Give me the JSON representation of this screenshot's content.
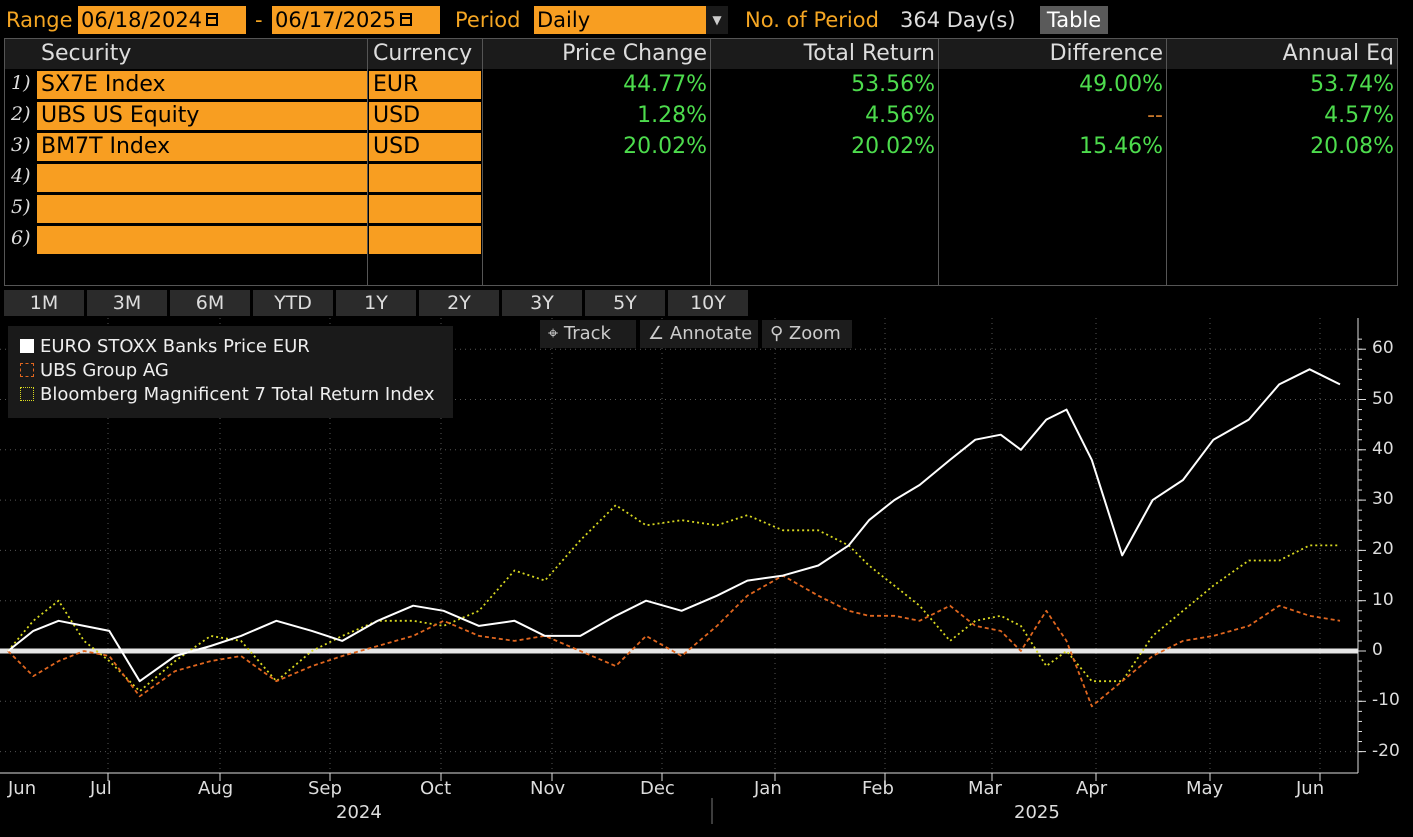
{
  "toolbar": {
    "range_label": "Range",
    "start_date": "06/18/2024",
    "dash": "-",
    "end_date": "06/17/2025",
    "period_label": "Period",
    "period_value": "Daily",
    "num_period_label": "No. of Period",
    "num_period_value": "364 Day(s)",
    "table_button": "Table"
  },
  "table": {
    "headers": [
      "Security",
      "Currency",
      "Price Change",
      "Total Return",
      "Difference",
      "Annual Eq"
    ],
    "rows": [
      {
        "n": "1)",
        "security": "SX7E Index",
        "currency": "EUR",
        "price_change": "44.77%",
        "total_return": "53.56%",
        "difference": "49.00%",
        "annual_eq": "53.74%"
      },
      {
        "n": "2)",
        "security": "UBS US Equity",
        "currency": "USD",
        "price_change": "1.28%",
        "total_return": "4.56%",
        "difference": "--",
        "annual_eq": "4.57%"
      },
      {
        "n": "3)",
        "security": "BM7T Index",
        "currency": "USD",
        "price_change": "20.02%",
        "total_return": "20.02%",
        "difference": "15.46%",
        "annual_eq": "20.08%"
      },
      {
        "n": "4)",
        "security": "",
        "currency": "",
        "price_change": "",
        "total_return": "",
        "difference": "",
        "annual_eq": ""
      },
      {
        "n": "5)",
        "security": "",
        "currency": "",
        "price_change": "",
        "total_return": "",
        "difference": "",
        "annual_eq": ""
      },
      {
        "n": "6)",
        "security": "",
        "currency": "",
        "price_change": "",
        "total_return": "",
        "difference": "",
        "annual_eq": ""
      }
    ]
  },
  "periods": [
    "1M",
    "3M",
    "6M",
    "YTD",
    "1Y",
    "2Y",
    "3Y",
    "5Y",
    "10Y"
  ],
  "chart_tools": {
    "track": "Track",
    "annotate": "Annotate",
    "zoom": "Zoom"
  },
  "colors": {
    "accent": "#f89e21",
    "positive": "#4ddc4d",
    "background": "#000000"
  },
  "chart_data": {
    "type": "line",
    "x_unit": "trading day index from 2024-06-18",
    "legend_position": "top-left",
    "grid": true,
    "ylim": [
      -22,
      65
    ],
    "yticks": [
      60,
      50,
      40,
      30,
      20,
      10,
      0,
      -10,
      -20
    ],
    "xlabels": [
      "Jun",
      "Jul",
      "Aug",
      "Sep",
      "Oct",
      "Nov",
      "Dec",
      "Jan",
      "Feb",
      "Mar",
      "Apr",
      "May",
      "Jun"
    ],
    "years": [
      "2024",
      "2025"
    ],
    "series": [
      {
        "name": "EURO STOXX Banks Price EUR",
        "color": "#ffffff",
        "dash": "none",
        "x": [
          0,
          5,
          10,
          15,
          20,
          26,
          33,
          40,
          46,
          53,
          60,
          66,
          73,
          80,
          86,
          93,
          100,
          106,
          113,
          120,
          126,
          133,
          140,
          146,
          153,
          160,
          166,
          170,
          175,
          180,
          186,
          191,
          196,
          200,
          205,
          209,
          214,
          220,
          226,
          232,
          238,
          245,
          251,
          257,
          263
        ],
        "y": [
          0,
          4,
          6,
          5,
          4,
          -6,
          -1,
          1,
          3,
          6,
          4,
          2,
          6,
          9,
          8,
          5,
          6,
          3,
          3,
          7,
          10,
          8,
          11,
          14,
          15,
          17,
          21,
          26,
          30,
          33,
          38,
          42,
          43,
          40,
          46,
          48,
          38,
          19,
          30,
          34,
          42,
          46,
          53,
          56,
          53
        ]
      },
      {
        "name": "UBS Group AG",
        "color": "#e0661f",
        "dash": "4,3",
        "x": [
          0,
          5,
          10,
          15,
          20,
          26,
          33,
          40,
          46,
          53,
          60,
          66,
          73,
          80,
          86,
          93,
          100,
          106,
          113,
          120,
          126,
          133,
          140,
          146,
          153,
          160,
          166,
          170,
          175,
          180,
          186,
          191,
          196,
          200,
          205,
          209,
          214,
          220,
          226,
          232,
          238,
          245,
          251,
          257,
          263
        ],
        "y": [
          0,
          -5,
          -2,
          0,
          -1,
          -9,
          -4,
          -2,
          -1,
          -6,
          -3,
          -1,
          1,
          3,
          6,
          3,
          2,
          3,
          0,
          -3,
          3,
          -1,
          5,
          11,
          15,
          11,
          8,
          7,
          7,
          6,
          9,
          5,
          4,
          0,
          8,
          2,
          -11,
          -6,
          -1,
          2,
          3,
          5,
          9,
          7,
          6
        ]
      },
      {
        "name": "Bloomberg Magnificent 7 Total Return Index",
        "color": "#d8d820",
        "dash": "2,3",
        "x": [
          0,
          5,
          10,
          15,
          20,
          26,
          33,
          40,
          46,
          53,
          60,
          66,
          73,
          80,
          86,
          93,
          100,
          106,
          113,
          120,
          126,
          133,
          140,
          146,
          153,
          160,
          166,
          170,
          175,
          180,
          186,
          191,
          196,
          200,
          205,
          209,
          214,
          220,
          226,
          232,
          238,
          245,
          251,
          257,
          263
        ],
        "y": [
          0,
          6,
          10,
          2,
          -2,
          -8,
          -2,
          3,
          2,
          -6,
          0,
          3,
          6,
          6,
          5,
          8,
          16,
          14,
          22,
          29,
          25,
          26,
          25,
          27,
          24,
          24,
          21,
          17,
          13,
          9,
          2,
          6,
          7,
          5,
          -3,
          0,
          -6,
          -6,
          3,
          8,
          13,
          18,
          18,
          21,
          21
        ]
      }
    ]
  }
}
